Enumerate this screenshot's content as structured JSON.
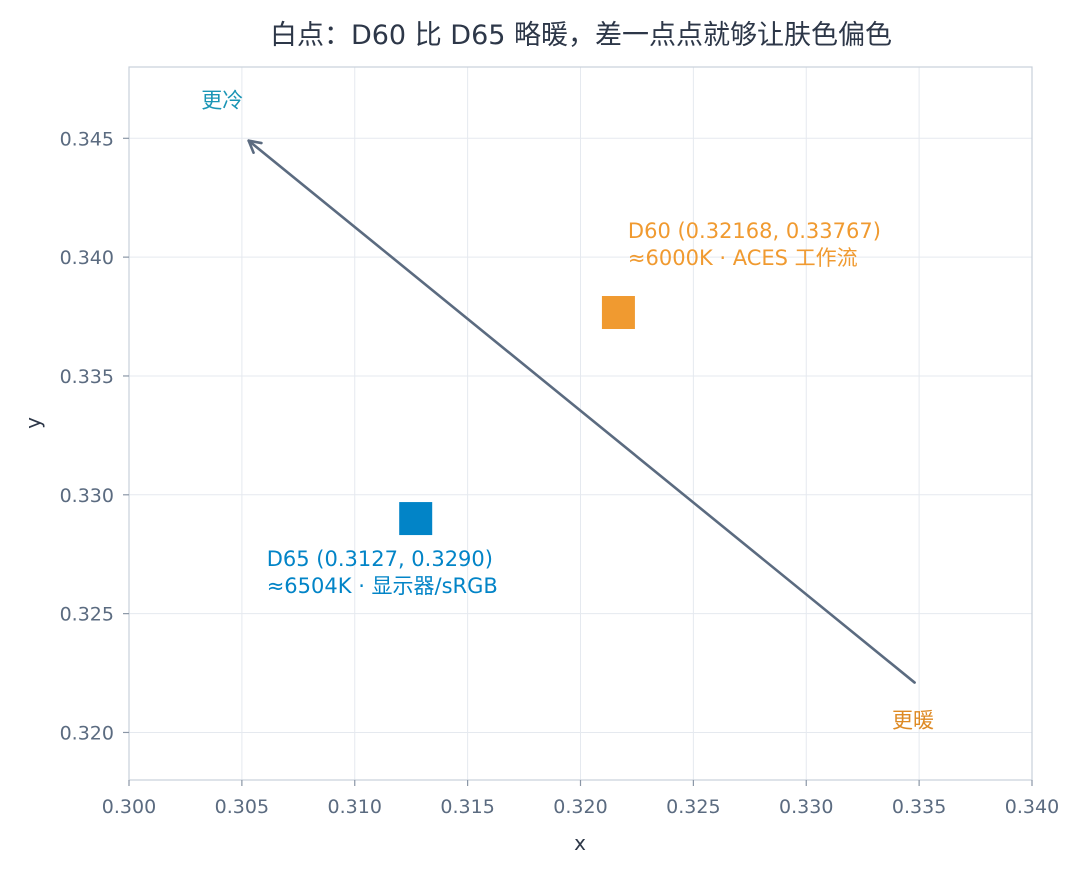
{
  "chart_data": {
    "type": "scatter",
    "title": "白点：D60 比 D65 略暖，差一点点就够让肤色偏色",
    "xlabel": "x",
    "ylabel": "y",
    "xlim": [
      0.3,
      0.34
    ],
    "ylim": [
      0.318,
      0.348
    ],
    "xticks": [
      "0.300",
      "0.305",
      "0.310",
      "0.315",
      "0.320",
      "0.325",
      "0.330",
      "0.335",
      "0.340"
    ],
    "yticks": [
      "0.320",
      "0.325",
      "0.330",
      "0.335",
      "0.340",
      "0.345"
    ],
    "grid": true,
    "points": [
      {
        "x": 0.3127,
        "y": 0.329,
        "color": "#0284c7",
        "marker": "square",
        "label_lines": [
          "D65 (0.3127, 0.3290)",
          "≈6504K · 显示器/sRGB"
        ],
        "label_x": 0.3061,
        "label_y": 0.327
      },
      {
        "x": 0.32168,
        "y": 0.33767,
        "color": "#f09a30",
        "marker": "square",
        "label_lines": [
          "D60 (0.32168, 0.33767)",
          "≈6000K · ACES 工作流"
        ],
        "label_x": 0.3221,
        "label_y": 0.3408
      }
    ],
    "arrow": {
      "from": [
        0.3348,
        0.3221
      ],
      "to": [
        0.3053,
        0.3449
      ],
      "color": "#5b6b80"
    },
    "annotations": [
      {
        "text": "更冷",
        "x": 0.3032,
        "y": 0.3463,
        "color": "#1a95b5"
      },
      {
        "text": "更暖",
        "x": 0.3338,
        "y": 0.3202,
        "color": "#de8a24"
      }
    ]
  }
}
